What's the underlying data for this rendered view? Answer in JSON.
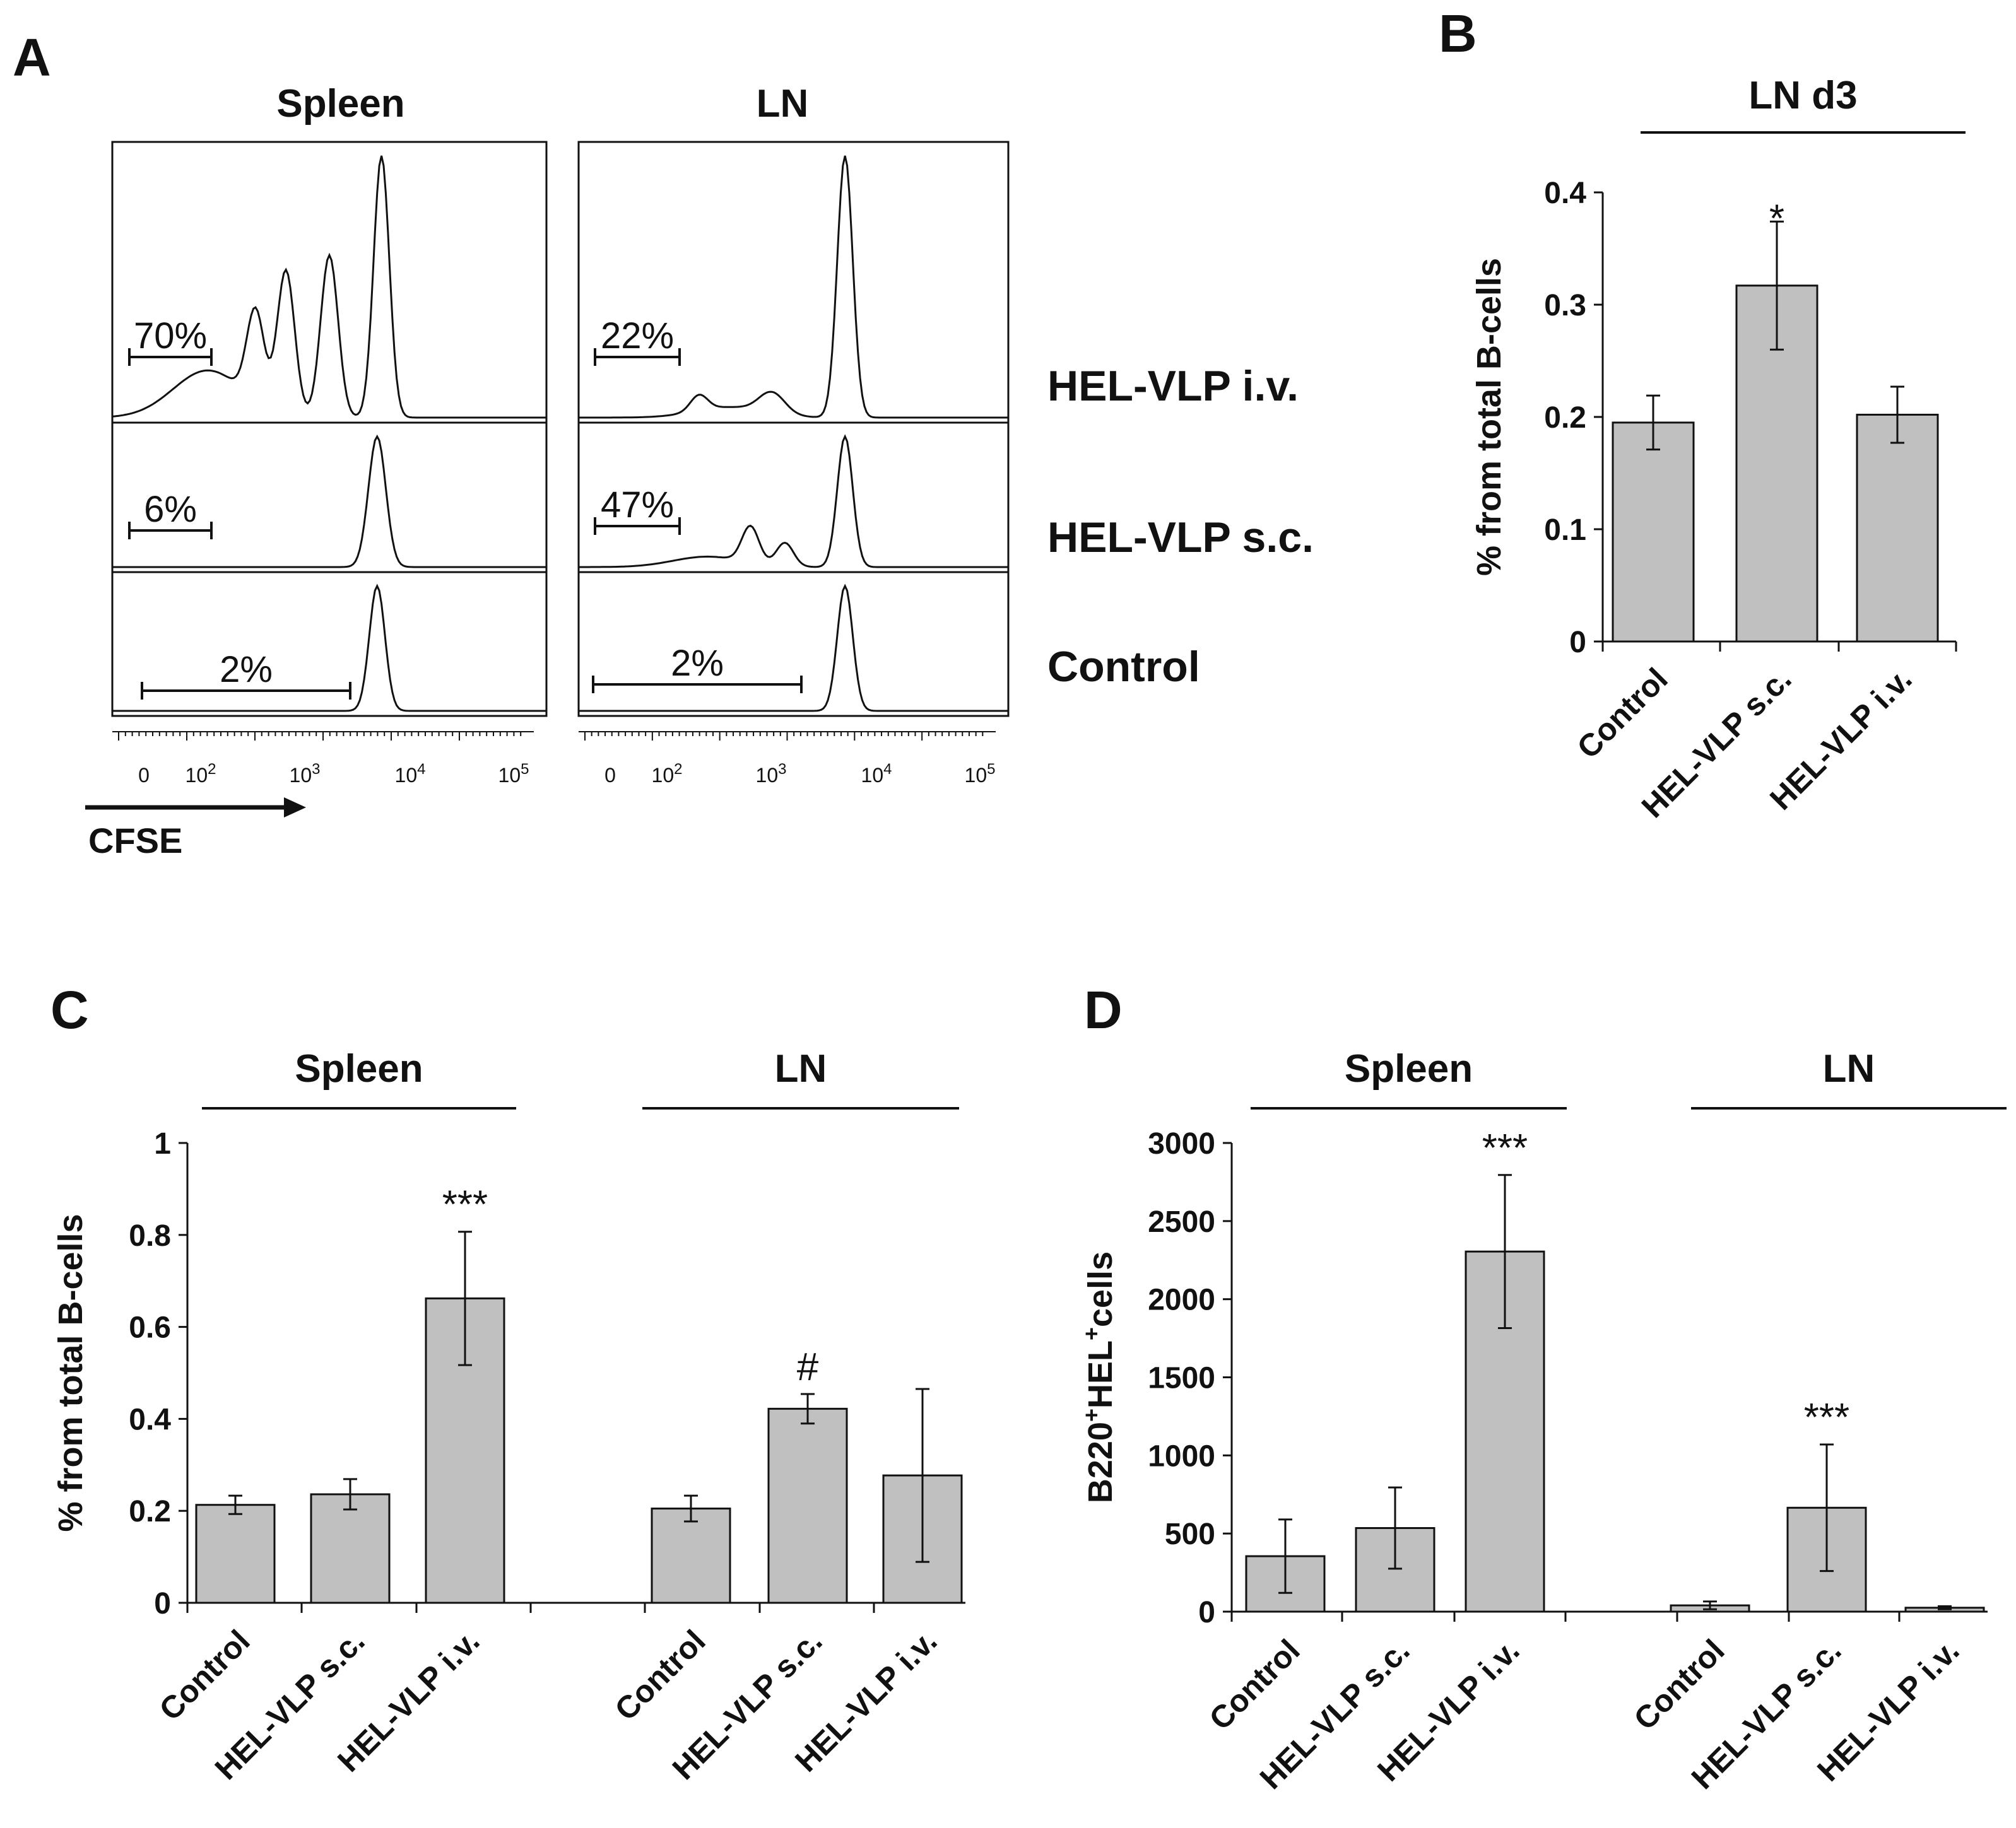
{
  "chart_data": [
    {
      "panel": "A",
      "type": "histogram",
      "columns": [
        "Spleen",
        "LN"
      ],
      "rows": [
        "HEL-VLP i.v.",
        "HEL-VLP s.c.",
        "Control"
      ],
      "gate_percent": {
        "Spleen": {
          "HEL-VLP i.v.": "70%",
          "HEL-VLP s.c.": "6%",
          "Control": "2%"
        },
        "LN": {
          "HEL-VLP i.v.": "22%",
          "HEL-VLP s.c.": "47%",
          "Control": "2%"
        }
      },
      "x_ticks": [
        "0",
        "10",
        "10",
        "10",
        "10"
      ],
      "x_tick_exponents": [
        "",
        "2",
        "3",
        "4",
        "5"
      ],
      "xlabel": "CFSE"
    },
    {
      "panel": "B",
      "type": "bar",
      "group_title": "LN d3",
      "categories": [
        "Control",
        "HEL-VLP s.c.",
        "HEL-VLP i.v."
      ],
      "values": [
        0.195,
        0.317,
        0.202
      ],
      "errors": [
        0.024,
        0.057,
        0.025
      ],
      "significance": [
        "",
        "*",
        ""
      ],
      "ylabel": "% from total B-cells",
      "ylim": [
        0,
        0.4
      ],
      "yticks": [
        0,
        0.1,
        0.2,
        0.3,
        0.4
      ],
      "ytick_labels": [
        "0",
        "0.1",
        "0.2",
        "0.3",
        "0.4"
      ]
    },
    {
      "panel": "C",
      "type": "bar",
      "groups": [
        {
          "title": "Spleen",
          "categories": [
            "Control",
            "HEL-VLP s.c.",
            "HEL-VLP i.v."
          ],
          "values": [
            0.213,
            0.236,
            0.662
          ],
          "errors": [
            0.02,
            0.033,
            0.145
          ],
          "significance": [
            "",
            "",
            "***"
          ]
        },
        {
          "title": "LN",
          "categories": [
            "Control",
            "HEL-VLP s.c.",
            "HEL-VLP i.v."
          ],
          "values": [
            0.205,
            0.422,
            0.277
          ],
          "errors": [
            0.028,
            0.032,
            0.188
          ],
          "significance": [
            "",
            "#",
            ""
          ]
        }
      ],
      "ylabel": "% from total B-cells",
      "ylim": [
        0,
        1
      ],
      "yticks": [
        0,
        0.2,
        0.4,
        0.6,
        0.8,
        1
      ],
      "ytick_labels": [
        "0",
        "0.2",
        "0.4",
        "0.6",
        "0.8",
        "1"
      ]
    },
    {
      "panel": "D",
      "type": "bar",
      "groups": [
        {
          "title": "Spleen",
          "categories": [
            "Control",
            "HEL-VLP s.c.",
            "HEL-VLP i.v."
          ],
          "values": [
            355,
            535,
            2305
          ],
          "errors": [
            235,
            260,
            490
          ],
          "significance": [
            "",
            "",
            "***"
          ]
        },
        {
          "title": "LN",
          "categories": [
            "Control",
            "HEL-VLP s.c.",
            "HEL-VLP i.v."
          ],
          "values": [
            40,
            665,
            25
          ],
          "errors": [
            25,
            405,
            10
          ],
          "significance": [
            "",
            "***",
            ""
          ]
        }
      ],
      "ylabel": "B220+HEL+cells",
      "ylim": [
        0,
        3000
      ],
      "yticks": [
        0,
        500,
        1000,
        1500,
        2000,
        2500,
        3000
      ],
      "ytick_labels": [
        "0",
        "500",
        "1000",
        "1500",
        "2000",
        "2500",
        "3000"
      ]
    }
  ],
  "colors": {
    "bar_fill": "#c0c0c0",
    "stroke": "#111111"
  }
}
